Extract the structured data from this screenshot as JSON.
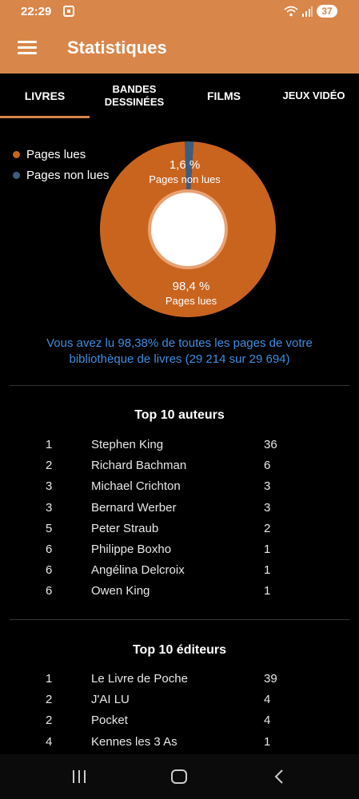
{
  "status_bar": {
    "time": "22:29",
    "battery": "37"
  },
  "app_bar": {
    "title": "Statistiques"
  },
  "tabs": [
    {
      "label": "LIVRES",
      "active": true
    },
    {
      "label": "BANDES DESSINÉES",
      "active": false
    },
    {
      "label": "FILMS",
      "active": false
    },
    {
      "label": "JEUX VIDÉO",
      "active": false
    }
  ],
  "chart_data": {
    "type": "pie",
    "categories": [
      "Pages lues",
      "Pages non lues"
    ],
    "values": [
      98.4,
      1.6
    ],
    "labels": [
      "98,4 %",
      "1,6 %"
    ],
    "legend": "top-left",
    "colors": [
      "#c9641f",
      "#3d5d7f"
    ]
  },
  "summary": "Vous avez lu 98,38% de toutes les pages de votre bibliothèque de livres (29 214 sur 29 694)",
  "top_authors": {
    "title": "Top 10 auteurs",
    "rows": [
      {
        "rank": "1",
        "name": "Stephen King",
        "count": "36"
      },
      {
        "rank": "2",
        "name": "Richard Bachman",
        "count": "6"
      },
      {
        "rank": "3",
        "name": "Michael Crichton",
        "count": "3"
      },
      {
        "rank": "3",
        "name": "Bernard Werber",
        "count": "3"
      },
      {
        "rank": "5",
        "name": "Peter Straub",
        "count": "2"
      },
      {
        "rank": "6",
        "name": "Philippe Boxho",
        "count": "1"
      },
      {
        "rank": "6",
        "name": "Angélina Delcroix",
        "count": "1"
      },
      {
        "rank": "6",
        "name": "Owen King",
        "count": "1"
      }
    ]
  },
  "top_publishers": {
    "title": "Top 10 éditeurs",
    "rows": [
      {
        "rank": "1",
        "name": "Le Livre de Poche",
        "count": "39"
      },
      {
        "rank": "2",
        "name": "J'AI LU",
        "count": "4"
      },
      {
        "rank": "2",
        "name": "Pocket",
        "count": "4"
      },
      {
        "rank": "4",
        "name": "Kennes les 3 As",
        "count": "1"
      }
    ]
  },
  "colors": {
    "accent": "#d9864a",
    "link": "#3c8ee0"
  }
}
